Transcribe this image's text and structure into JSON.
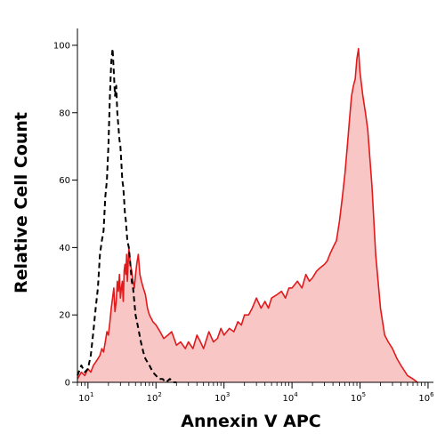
{
  "chart_data": {
    "type": "area",
    "xlabel": "Annexin V APC",
    "ylabel": "Relative Cell Count",
    "x_scale": "log",
    "xlim": [
      7,
      1200000
    ],
    "ylim": [
      0,
      105
    ],
    "x_ticks": [
      {
        "base": "10",
        "exp": "1",
        "value": 10
      },
      {
        "base": "10",
        "exp": "2",
        "value": 100
      },
      {
        "base": "10",
        "exp": "3",
        "value": 1000
      },
      {
        "base": "10",
        "exp": "4",
        "value": 10000
      },
      {
        "base": "10",
        "exp": "5",
        "value": 100000
      },
      {
        "base": "10",
        "exp": "6",
        "value": 1000000
      }
    ],
    "y_ticks": [
      "0",
      "20",
      "40",
      "60",
      "80",
      "100"
    ],
    "grid": false,
    "series": [
      {
        "style": "filled-red",
        "color": "#e31a1c",
        "fill": "#f9c6c6",
        "x": [
          7,
          8,
          9,
          10,
          11,
          12,
          13,
          14,
          15,
          16,
          17,
          18,
          19,
          20,
          21,
          22,
          23,
          24,
          25,
          26,
          27,
          28,
          29,
          30,
          31,
          32,
          33,
          34,
          35,
          36,
          37,
          38,
          40,
          42,
          44,
          46,
          48,
          50,
          52,
          55,
          58,
          61,
          65,
          70,
          75,
          80,
          90,
          100,
          115,
          130,
          150,
          170,
          200,
          230,
          270,
          300,
          350,
          400,
          450,
          500,
          600,
          700,
          800,
          900,
          1000,
          1200,
          1400,
          1600,
          1800,
          2000,
          2300,
          2600,
          3000,
          3500,
          4000,
          4500,
          5000,
          6000,
          7000,
          8000,
          9000,
          10000,
          12000,
          14000,
          16000,
          18000,
          20000,
          23000,
          26000,
          30000,
          33000,
          36000,
          40000,
          45000,
          50000,
          55000,
          60000,
          65000,
          70000,
          75000,
          80000,
          85000,
          90000,
          95000,
          100000,
          110000,
          120000,
          130000,
          150000,
          170000,
          200000,
          230000,
          260000,
          300000,
          350000,
          400000,
          500000,
          600000,
          700000
        ],
        "y": [
          1,
          3,
          2,
          4,
          3,
          5,
          6,
          7,
          8,
          10,
          9,
          12,
          15,
          14,
          18,
          22,
          25,
          28,
          21,
          24,
          30,
          27,
          32,
          25,
          28,
          30,
          24,
          33,
          35,
          32,
          38,
          30,
          40,
          35,
          33,
          30,
          28,
          32,
          35,
          38,
          32,
          30,
          28,
          26,
          22,
          20,
          18,
          17,
          15,
          13,
          14,
          15,
          11,
          12,
          10,
          12,
          10,
          14,
          12,
          10,
          15,
          12,
          13,
          16,
          14,
          16,
          15,
          18,
          17,
          20,
          20,
          22,
          25,
          22,
          24,
          22,
          25,
          26,
          27,
          25,
          28,
          28,
          30,
          28,
          32,
          30,
          31,
          33,
          34,
          35,
          36,
          38,
          40,
          42,
          48,
          55,
          62,
          70,
          78,
          85,
          88,
          90,
          96,
          99,
          92,
          85,
          80,
          75,
          58,
          38,
          22,
          14,
          12,
          10,
          7,
          5,
          2,
          1,
          0
        ],
        "values": [
          1,
          3,
          2,
          4,
          3,
          5,
          6,
          7,
          8,
          10,
          9,
          12,
          15,
          14,
          18,
          22,
          25,
          28,
          21,
          24,
          30,
          27,
          32,
          25,
          28,
          30,
          24,
          33,
          35,
          32,
          38,
          30,
          40,
          35,
          33,
          30,
          28,
          32,
          35,
          38,
          32,
          30,
          28,
          26,
          22,
          20,
          18,
          17,
          15,
          13,
          14,
          15,
          11,
          12,
          10,
          12,
          10,
          14,
          12,
          10,
          15,
          12,
          13,
          16,
          14,
          16,
          15,
          18,
          17,
          20,
          20,
          22,
          25,
          22,
          24,
          22,
          25,
          26,
          27,
          25,
          28,
          28,
          30,
          28,
          32,
          30,
          31,
          33,
          34,
          35,
          36,
          38,
          40,
          42,
          48,
          55,
          62,
          70,
          78,
          85,
          88,
          90,
          96,
          99,
          92,
          85,
          80,
          75,
          58,
          38,
          22,
          14,
          12,
          10,
          7,
          5,
          2,
          1,
          0
        ]
      },
      {
        "style": "dashed-black",
        "color": "#000000",
        "x": [
          7,
          8,
          9,
          10,
          11,
          12,
          13,
          14,
          15,
          16,
          17,
          18,
          19,
          20,
          21,
          22,
          23,
          24,
          25,
          26,
          27,
          28,
          29,
          30,
          31,
          32,
          33,
          34,
          35,
          36,
          38,
          40,
          42,
          44,
          46,
          48,
          50,
          55,
          60,
          65,
          70,
          80,
          90,
          100,
          110,
          125,
          140,
          160,
          180,
          200
        ],
        "y": [
          2,
          5,
          3,
          4,
          8,
          15,
          22,
          28,
          38,
          42,
          45,
          55,
          60,
          70,
          85,
          95,
          99,
          92,
          85,
          88,
          80,
          76,
          72,
          70,
          65,
          60,
          58,
          54,
          50,
          48,
          42,
          40,
          35,
          30,
          28,
          24,
          20,
          16,
          12,
          9,
          7,
          5,
          3,
          2,
          1,
          1,
          0,
          1,
          0,
          0
        ],
        "values": [
          2,
          5,
          3,
          4,
          8,
          15,
          22,
          28,
          38,
          42,
          45,
          55,
          60,
          70,
          85,
          95,
          99,
          92,
          85,
          88,
          80,
          76,
          72,
          70,
          65,
          60,
          58,
          54,
          50,
          48,
          42,
          40,
          35,
          30,
          28,
          24,
          20,
          16,
          12,
          9,
          7,
          5,
          3,
          2,
          1,
          1,
          0,
          1,
          0,
          0
        ]
      }
    ]
  }
}
